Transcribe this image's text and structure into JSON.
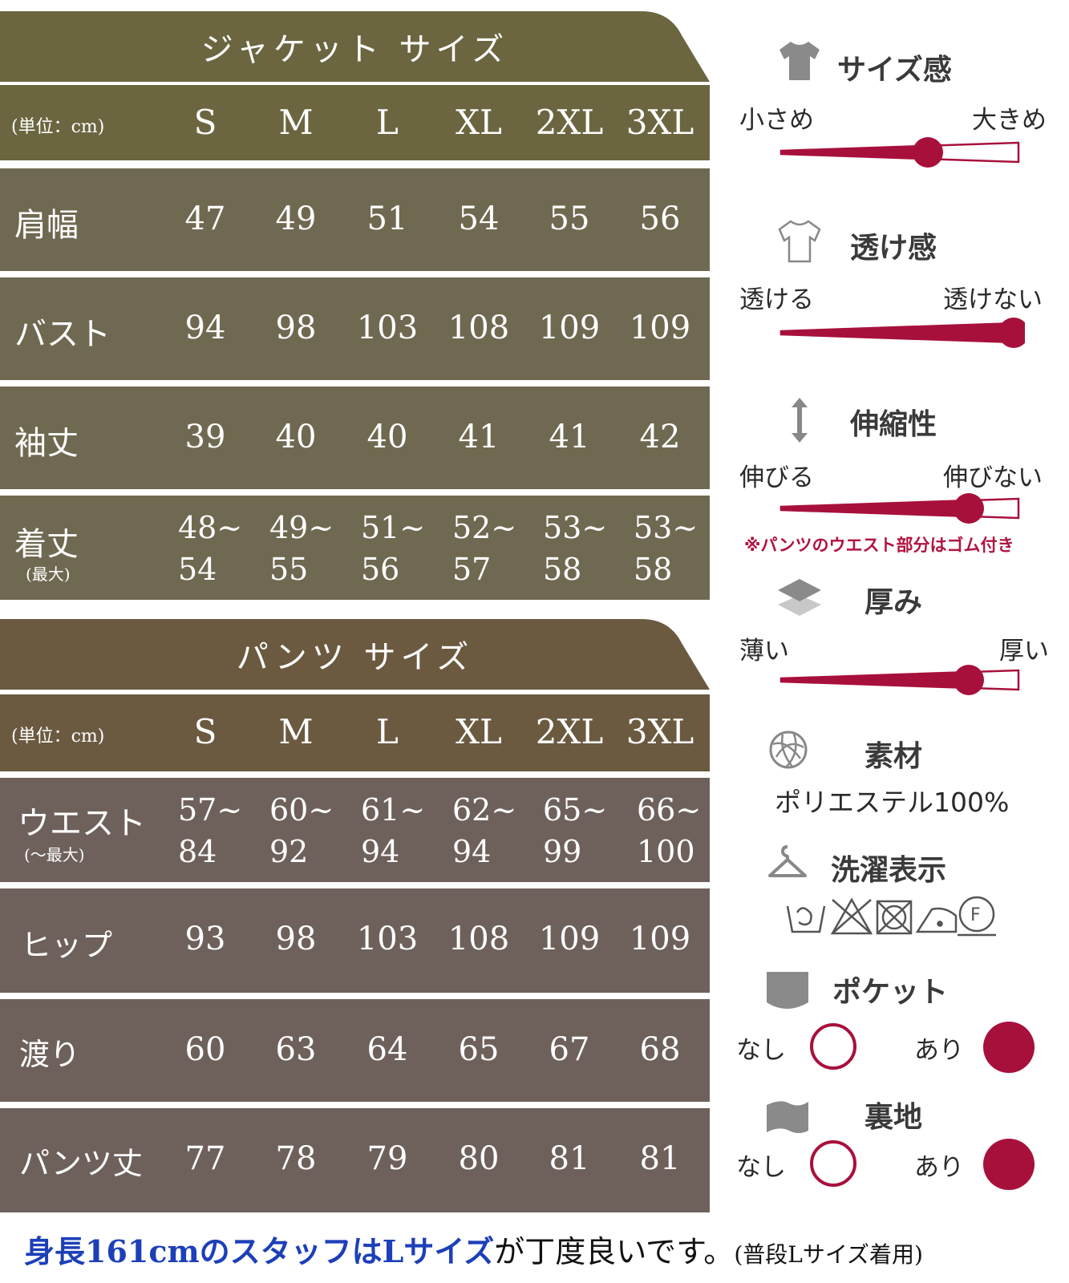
{
  "jacket": {
    "title": "ジャケット サイズ",
    "unit": "(単位：cm)",
    "sizes": [
      "S",
      "M",
      "L",
      "XL",
      "2XL",
      "3XL"
    ],
    "rows": [
      {
        "label": "肩幅",
        "values": [
          "47",
          "49",
          "51",
          "54",
          "55",
          "56"
        ]
      },
      {
        "label": "バスト",
        "values": [
          "94",
          "98",
          "103",
          "108",
          "109",
          "109"
        ]
      },
      {
        "label": "袖丈",
        "values": [
          "39",
          "40",
          "40",
          "41",
          "41",
          "42"
        ]
      },
      {
        "label": "着丈",
        "sublabel": "(最大)",
        "top": [
          "48~",
          "49~",
          "51~",
          "52~",
          "53~",
          "53~"
        ],
        "bottom": [
          "54",
          "55",
          "56",
          "57",
          "58",
          "58"
        ]
      }
    ]
  },
  "pants": {
    "title": "パンツ サイズ",
    "unit": "(単位：cm)",
    "sizes": [
      "S",
      "M",
      "L",
      "XL",
      "2XL",
      "3XL"
    ],
    "rows": [
      {
        "label": "ウエスト",
        "sublabel": "(～最大)",
        "top": [
          "57~",
          "60~",
          "61~",
          "62~",
          "65~",
          "66~"
        ],
        "bottom": [
          "84",
          "92",
          "94",
          "94",
          "99",
          "100"
        ]
      },
      {
        "label": "ヒップ",
        "values": [
          "93",
          "98",
          "103",
          "108",
          "109",
          "109"
        ]
      },
      {
        "label": "渡り",
        "values": [
          "60",
          "63",
          "64",
          "65",
          "67",
          "68"
        ]
      },
      {
        "label": "パンツ丈",
        "values": [
          "77",
          "78",
          "79",
          "80",
          "81",
          "81"
        ]
      }
    ]
  },
  "colors": {
    "jacket_header": "#6b6640",
    "jacket_row": "#6f6951",
    "pants_header": "#6b5a40",
    "pants_row": "#6e615c",
    "accent": "#a8103c",
    "footer_blue": "#1d3fb8"
  },
  "panel": {
    "size_feel": {
      "title": "サイズ感",
      "left": "小さめ",
      "right": "大きめ",
      "icon": "tshirt-icon",
      "level": 0.75
    },
    "sheer": {
      "title": "透け感",
      "left": "透ける",
      "right": "透けない",
      "icon": "tshirt-outline-icon",
      "level": 1.0
    },
    "stretch": {
      "title": "伸縮性",
      "left": "伸びる",
      "right": "伸びない",
      "icon": "vertical-arrows-icon",
      "level": 0.8,
      "note": "※パンツのウエスト部分はゴム付き"
    },
    "thickness": {
      "title": "厚み",
      "left": "薄い",
      "right": "厚い",
      "icon": "layers-icon",
      "level": 0.8
    },
    "material": {
      "title": "素材",
      "value": "ポリエステル100%",
      "icon": "yarn-ball-icon"
    },
    "care": {
      "title": "洗濯表示",
      "icon": "hanger-icon",
      "symbols": [
        "hand-wash-icon",
        "no-bleach-icon",
        "no-tumble-dry-icon",
        "low-iron-icon",
        "dry-clean-f-icon"
      ]
    },
    "pocket": {
      "title": "ポケット",
      "no": "なし",
      "yes": "あり",
      "selected": "yes",
      "icon": "pocket-icon"
    },
    "lining": {
      "title": "裏地",
      "no": "なし",
      "yes": "あり",
      "selected": "yes",
      "icon": "fabric-icon"
    }
  },
  "footer": {
    "highlight": "身長161cmのスタッフはLサイズ",
    "text": "が丁度良いです。",
    "note": "(普段Lサイズ着用)"
  }
}
